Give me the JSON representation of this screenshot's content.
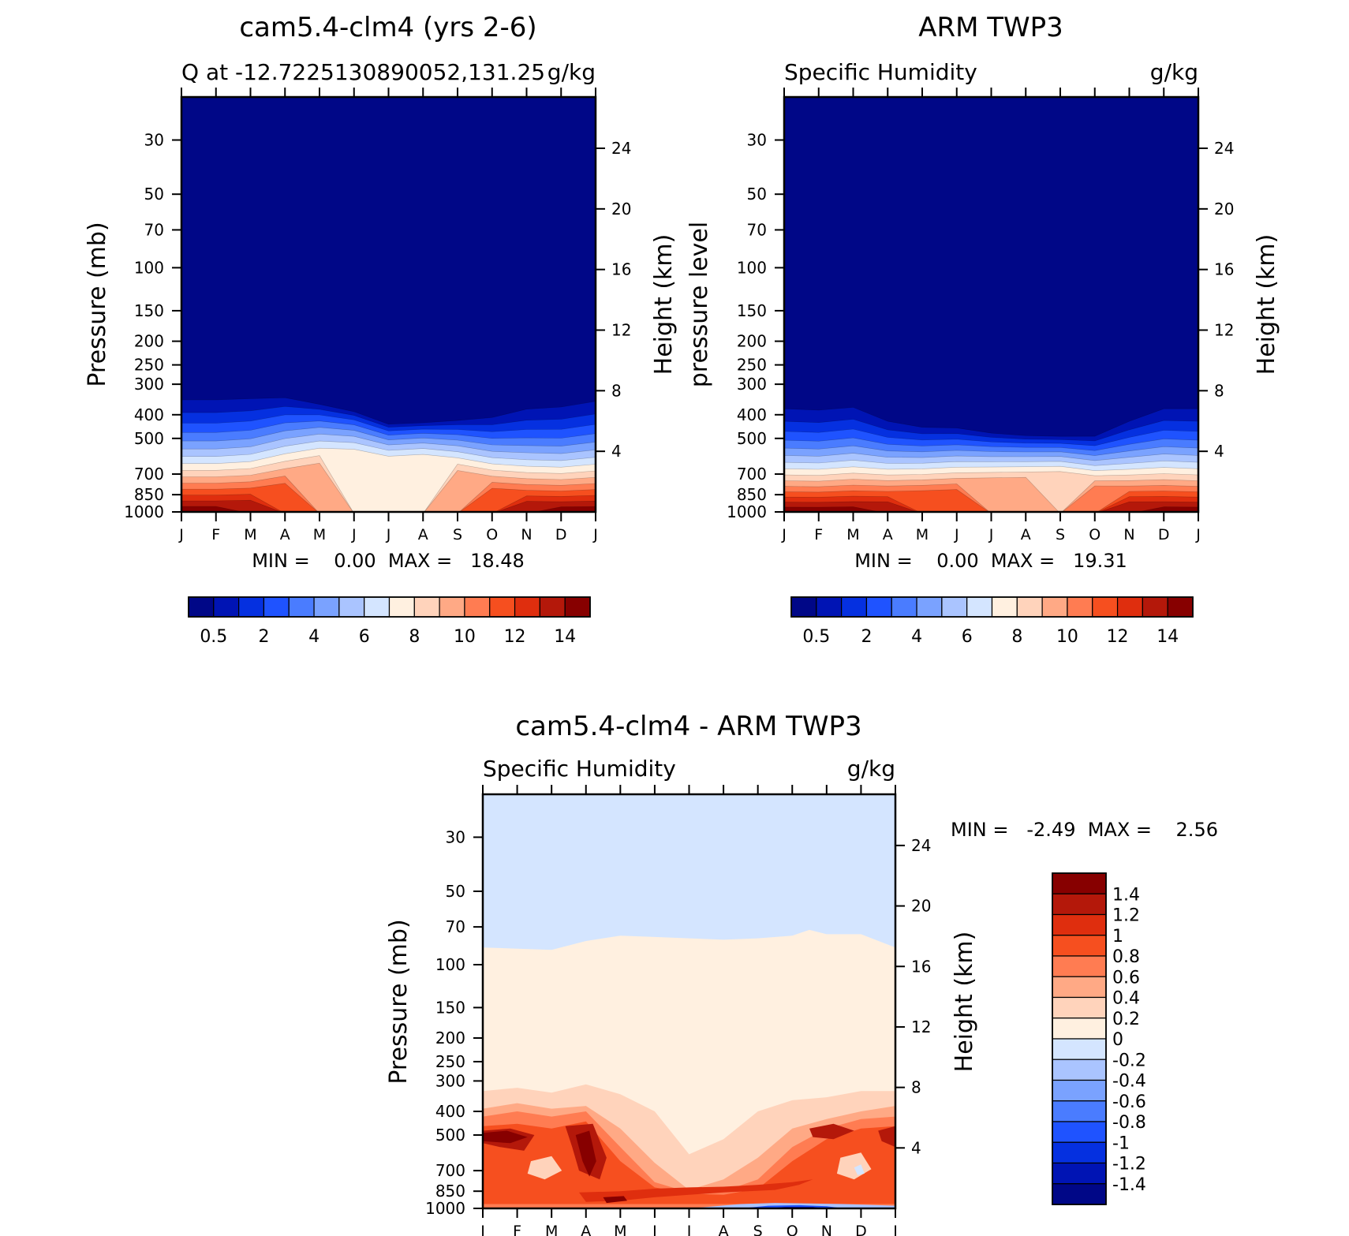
{
  "figure": {
    "colors": {
      "abs_levels": [
        "#000787",
        "#0014b4",
        "#0530e0",
        "#1f53ff",
        "#4a7cff",
        "#7aa2ff",
        "#aac4ff",
        "#d4e5ff",
        "#fff0e0",
        "#ffd3bb",
        "#ffa985",
        "#ff7c52",
        "#f64f1f",
        "#df2e0e",
        "#b4180a",
        "#870000"
      ],
      "diff_levels": [
        "#000787",
        "#0014b4",
        "#0530e0",
        "#1f53ff",
        "#4a7cff",
        "#7aa2ff",
        "#aac4ff",
        "#d4e5ff",
        "#fff0e0",
        "#ffd3bb",
        "#ffa985",
        "#ff7c52",
        "#f64f1f",
        "#df2e0e",
        "#b4180a",
        "#870000"
      ]
    }
  },
  "chart_data": [
    {
      "type": "heatmap",
      "title": "cam5.4-clm4 (yrs 2-6)",
      "subtitle_left": "Q at -12.7225130890052,131.25",
      "subtitle_right": "g/kg",
      "ylabel_left": "Pressure (mb)",
      "ylabel_right": "Height (km)",
      "x_tick_labels": [
        "J",
        "F",
        "M",
        "A",
        "M",
        "J",
        "J",
        "A",
        "S",
        "O",
        "N",
        "D",
        "J"
      ],
      "y_ticks_pressure": [
        30,
        50,
        70,
        100,
        150,
        200,
        250,
        300,
        400,
        500,
        700,
        850,
        1000
      ],
      "y_ticks_height": [
        4,
        8,
        12,
        16,
        20,
        24
      ],
      "ylim_pressure": [
        20,
        1000
      ],
      "min_max_text": "MIN =    0.00  MAX =   18.48",
      "colorbar_labels": [
        "0.5",
        "2",
        "4",
        "6",
        "8",
        "10",
        "12",
        "14"
      ],
      "levels": [
        0.5,
        1,
        2,
        3,
        4,
        5,
        6,
        7,
        8,
        9,
        10,
        11,
        12,
        13,
        14
      ],
      "surface_level_fraction": [
        0.9,
        0.9,
        0.85,
        0.6,
        0.25,
        0.1,
        0.05,
        0.0,
        0.25,
        0.6,
        0.85,
        0.92,
        0.9
      ],
      "top_pressure": [
        280,
        280,
        285,
        310,
        350,
        380,
        430,
        425,
        410,
        380,
        320,
        300,
        285
      ]
    },
    {
      "type": "heatmap",
      "title": "ARM TWP3",
      "subtitle_left": "Specific Humidity",
      "subtitle_right": "g/kg",
      "ylabel_left": "pressure level",
      "ylabel_right": "Height (km)",
      "x_tick_labels": [
        "J",
        "F",
        "M",
        "A",
        "M",
        "J",
        "J",
        "A",
        "S",
        "O",
        "N",
        "D",
        "J"
      ],
      "y_ticks_pressure": [
        30,
        50,
        70,
        100,
        150,
        200,
        250,
        300,
        400,
        500,
        700,
        850,
        1000
      ],
      "y_ticks_height": [
        4,
        8,
        12,
        16,
        20,
        24
      ],
      "ylim_pressure": [
        20,
        1000
      ],
      "min_max_text": "MIN =    0.00  MAX =   19.31",
      "colorbar_labels": [
        "0.5",
        "2",
        "4",
        "6",
        "8",
        "10",
        "12",
        "14"
      ],
      "levels": [
        0.5,
        1,
        2,
        3,
        4,
        5,
        6,
        7,
        8,
        9,
        10,
        11,
        12,
        13,
        14
      ],
      "surface_level_fraction": [
        0.95,
        0.95,
        0.9,
        0.75,
        0.6,
        0.5,
        0.35,
        0.25,
        0.2,
        0.45,
        0.75,
        0.9,
        0.95
      ],
      "top_pressure": [
        300,
        305,
        305,
        380,
        420,
        430,
        460,
        475,
        480,
        470,
        380,
        310,
        300
      ]
    },
    {
      "type": "heatmap",
      "title": "cam5.4-clm4 - ARM TWP3",
      "subtitle_left": "Specific Humidity",
      "subtitle_right": "g/kg",
      "ylabel_left": "Pressure (mb)",
      "ylabel_right": "Height (km)",
      "x_tick_labels": [
        "J",
        "F",
        "M",
        "A",
        "M",
        "J",
        "J",
        "A",
        "S",
        "O",
        "N",
        "D",
        "J"
      ],
      "y_ticks_pressure": [
        30,
        50,
        70,
        100,
        150,
        200,
        250,
        300,
        400,
        500,
        700,
        850,
        1000
      ],
      "y_ticks_height": [
        4,
        8,
        12,
        16,
        20,
        24
      ],
      "ylim_pressure": [
        20,
        1000
      ],
      "min_max_text": "MIN =   -2.49  MAX =    2.56",
      "colorbar_labels": [
        "1.4",
        "1.2",
        "1",
        "0.8",
        "0.6",
        "0.4",
        "0.2",
        "0",
        "-0.2",
        "-0.4",
        "-0.6",
        "-0.8",
        "-1",
        "-1.2",
        "-1.4"
      ],
      "levels": [
        -1.4,
        -1.2,
        -1,
        -0.8,
        -0.6,
        -0.4,
        -0.2,
        0,
        0.2,
        0.4,
        0.6,
        0.8,
        1,
        1.2,
        1.4
      ]
    }
  ]
}
